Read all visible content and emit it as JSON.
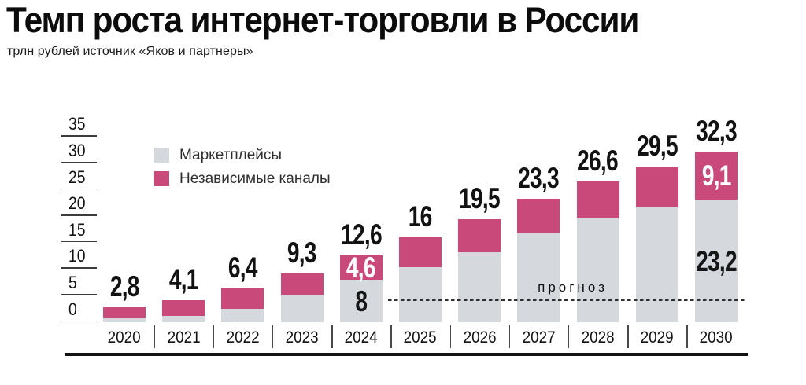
{
  "title": "Темп роста интернет-торговли в России",
  "subtitle": "трлн рублей источник «Яков и партнеры»",
  "forecast_label": "прогноз",
  "colors": {
    "marketplaces": "#d5d9dd",
    "independent": "#c9497b",
    "text": "#121212",
    "background": "#ffffff"
  },
  "legend": [
    {
      "label": "Маркетплейсы",
      "color": "#d5d9dd"
    },
    {
      "label": "Независимые каналы",
      "color": "#c9497b"
    }
  ],
  "chart_data": {
    "type": "bar",
    "stacked": true,
    "title": "Темп роста интернет-торговли в России",
    "unit": "трлн рублей",
    "source": "«Яков и партнеры»",
    "categories": [
      "2020",
      "2021",
      "2022",
      "2023",
      "2024",
      "2025",
      "2026",
      "2027",
      "2028",
      "2029",
      "2030"
    ],
    "series": [
      {
        "name": "Маркетплейсы",
        "color": "#d5d9dd",
        "values": [
          0.8,
          1.2,
          2.6,
          5.0,
          8,
          10.4,
          13.3,
          17.0,
          19.6,
          21.7,
          23.2
        ]
      },
      {
        "name": "Независимые каналы",
        "color": "#c9497b",
        "values": [
          2.0,
          2.9,
          3.8,
          4.3,
          4.6,
          5.6,
          6.2,
          6.3,
          7.0,
          7.8,
          9.1
        ]
      }
    ],
    "totals_display": [
      "2,8",
      "4,1",
      "6,4",
      "9,3",
      "12,6",
      "16",
      "19,5",
      "23,3",
      "26,6",
      "29,5",
      "32,3"
    ],
    "total_values": [
      2.8,
      4.1,
      6.4,
      9.3,
      12.6,
      16,
      19.5,
      23.3,
      26.6,
      29.5,
      32.3
    ],
    "segment_labels": {
      "2024": {
        "marketplaces": "8",
        "independent": "4,6"
      },
      "2030": {
        "marketplaces": "23,2",
        "independent": "9,1"
      }
    },
    "y_ticks": [
      35,
      30,
      25,
      20,
      15,
      10,
      5,
      0
    ],
    "ylim": [
      0,
      35
    ],
    "grid": false,
    "legend_position": "upper-left-inside",
    "forecast": {
      "label": "прогноз",
      "applies_from": "2025"
    }
  }
}
